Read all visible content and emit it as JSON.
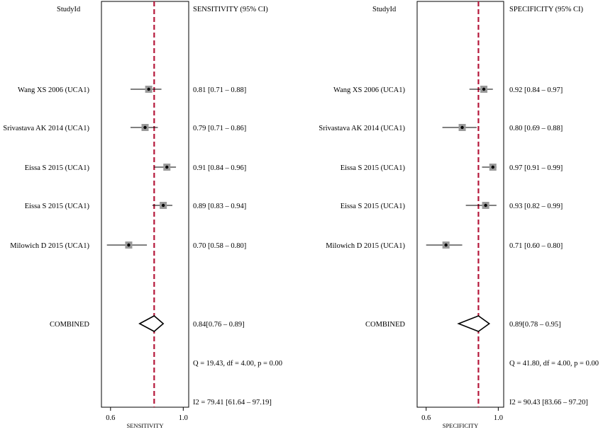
{
  "chart_data": [
    {
      "type": "forest",
      "col_study_header": "StudyId",
      "col_estimate_header": "SENSITIVITY (95% CI)",
      "xlabel": "SENSITIVITY",
      "xlim": [
        0.55,
        1.03
      ],
      "xticks": [
        0.6,
        1.0
      ],
      "xtick_labels": [
        "0.6",
        "1.0"
      ],
      "pooled_line": 0.84,
      "studies": [
        {
          "label": "Wang XS 2006 (UCA1)",
          "est": 0.81,
          "lo": 0.71,
          "hi": 0.88,
          "ci_text": "0.81 [0.71 – 0.88]"
        },
        {
          "label": "Srivastava AK 2014 (UCA1)",
          "est": 0.79,
          "lo": 0.71,
          "hi": 0.86,
          "ci_text": "0.79 [0.71 – 0.86]"
        },
        {
          "label": "Eissa S 2015 (UCA1)",
          "est": 0.91,
          "lo": 0.84,
          "hi": 0.96,
          "ci_text": "0.91 [0.84 – 0.96]"
        },
        {
          "label": "Eissa S 2015 (UCA1)",
          "est": 0.89,
          "lo": 0.83,
          "hi": 0.94,
          "ci_text": "0.89 [0.83 – 0.94]"
        },
        {
          "label": "Milowich D 2015 (UCA1)",
          "est": 0.7,
          "lo": 0.58,
          "hi": 0.8,
          "ci_text": "0.70 [0.58 – 0.80]"
        }
      ],
      "combined": {
        "label": "COMBINED",
        "est": 0.84,
        "lo": 0.76,
        "hi": 0.89,
        "ci_text": "0.84[0.76 – 0.89]"
      },
      "heterogeneity_q": "Q = 19.43, df = 4.00, p =  0.00",
      "heterogeneity_i2": "I2 = 79.41 [61.64 – 97.19]"
    },
    {
      "type": "forest",
      "col_study_header": "StudyId",
      "col_estimate_header": "SPECIFICITY (95% CI)",
      "xlabel": "SPECIFICITY",
      "xlim": [
        0.55,
        1.03
      ],
      "xticks": [
        0.6,
        1.0
      ],
      "xtick_labels": [
        "0.6",
        "1.0"
      ],
      "pooled_line": 0.89,
      "studies": [
        {
          "label": "Wang XS 2006 (UCA1)",
          "est": 0.92,
          "lo": 0.84,
          "hi": 0.97,
          "ci_text": "0.92 [0.84 – 0.97]"
        },
        {
          "label": "Srivastava AK 2014 (UCA1)",
          "est": 0.8,
          "lo": 0.69,
          "hi": 0.88,
          "ci_text": "0.80 [0.69 – 0.88]"
        },
        {
          "label": "Eissa S 2015 (UCA1)",
          "est": 0.97,
          "lo": 0.91,
          "hi": 0.99,
          "ci_text": "0.97 [0.91 – 0.99]"
        },
        {
          "label": "Eissa S 2015 (UCA1)",
          "est": 0.93,
          "lo": 0.82,
          "hi": 0.99,
          "ci_text": "0.93 [0.82 – 0.99]"
        },
        {
          "label": "Milowich D 2015 (UCA1)",
          "est": 0.71,
          "lo": 0.6,
          "hi": 0.8,
          "ci_text": "0.71 [0.60 – 0.80]"
        }
      ],
      "combined": {
        "label": "COMBINED",
        "est": 0.89,
        "lo": 0.78,
        "hi": 0.95,
        "ci_text": "0.89[0.78 – 0.95]"
      },
      "heterogeneity_q": "Q = 41.80, df = 4.00, p =  0.00",
      "heterogeneity_i2": "I2 = 90.43 [83.66 – 97.20]"
    }
  ],
  "colors": {
    "pooled_line": "#b5173a",
    "marker_box": "#9a9a9a",
    "marker_dot": "#000000",
    "axis": "#000000"
  }
}
